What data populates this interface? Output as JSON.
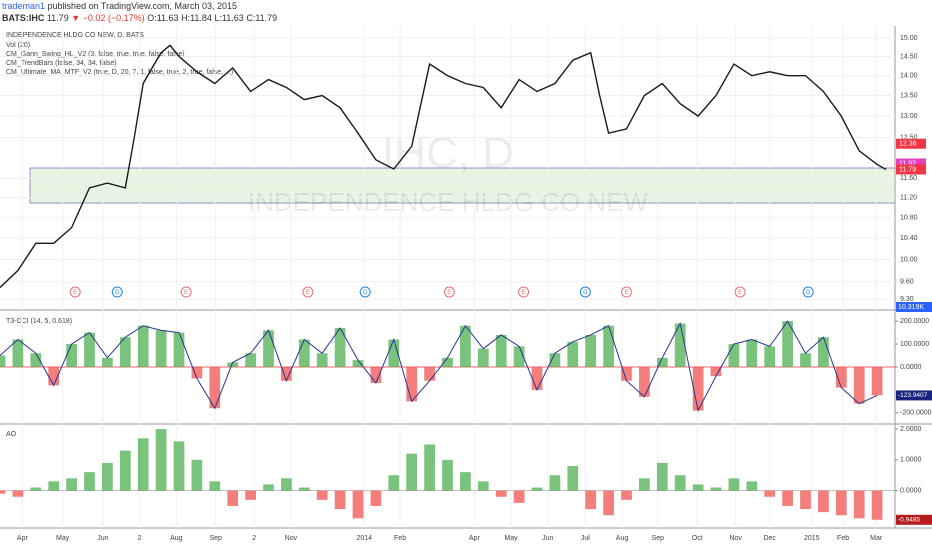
{
  "header": {
    "author": "trademan1",
    "published": "published on TradingView.com, March 03, 2015",
    "symbol": "BATS:IHC",
    "last": "11.79",
    "change": "▼ −0.02 (−0.17%)",
    "ohlc": [
      "O:11.63",
      "H:11.84",
      "L:11.63",
      "C:11.79"
    ]
  },
  "chart_data": [
    {
      "type": "line",
      "title": "INDEPENDENCE HLDG CO NEW, D, BATS",
      "legend": [
        "Vol (20)",
        "CM_Gann_Swing_HL_V2 (3, false, true, true, false, false)",
        "CM_TrendBars (false, 34, 34, false)",
        "CM_Ultimate_MA_MTF_V2 (true, D, 20, 7, 1, false, true, 2, true, false, ...)"
      ],
      "watermark": [
        "IHC, D",
        "INDEPENDENCE HLDG CO NEW"
      ],
      "color": "#1a1a1a",
      "log_scale": true,
      "grid": true,
      "x": [
        0,
        2,
        4,
        6,
        8,
        10,
        12,
        14,
        15,
        16,
        17,
        18,
        19,
        20,
        22,
        24,
        26,
        28,
        30,
        32,
        34,
        36,
        38,
        40,
        42,
        44,
        46,
        48,
        50,
        52,
        54,
        56,
        58,
        60,
        62,
        64,
        66,
        67,
        68,
        70,
        72,
        74,
        76,
        78,
        80,
        82,
        84,
        86,
        88,
        90,
        92,
        94,
        96,
        98,
        99
      ],
      "values": [
        9.5,
        9.8,
        10.3,
        10.3,
        10.6,
        11.4,
        11.5,
        11.4,
        12.5,
        13.8,
        14.2,
        14.6,
        14.8,
        14.5,
        14.1,
        13.8,
        14.2,
        13.6,
        13.9,
        13.7,
        13.4,
        13.5,
        13.2,
        12.6,
        12.0,
        11.8,
        12.3,
        14.3,
        14.0,
        13.8,
        13.7,
        13.2,
        13.9,
        13.6,
        13.8,
        14.4,
        14.6,
        13.5,
        12.6,
        12.7,
        13.5,
        13.8,
        13.3,
        13.0,
        13.5,
        14.3,
        14.0,
        14.1,
        14.0,
        14.0,
        13.6,
        13.0,
        12.2,
        11.9,
        11.79
      ],
      "xlim": [
        0,
        100
      ],
      "xticks": [
        {
          "value": 2.5,
          "label": "Apr"
        },
        {
          "value": 7,
          "label": "May"
        },
        {
          "value": 11.5,
          "label": "Jun"
        },
        {
          "value": 15.6,
          "label": "2"
        },
        {
          "value": 19.7,
          "label": "Aug"
        },
        {
          "value": 24.1,
          "label": "Sep"
        },
        {
          "value": 28.4,
          "label": "2"
        },
        {
          "value": 32.5,
          "label": "Nov"
        },
        {
          "value": 40.7,
          "label": "2014"
        },
        {
          "value": 44.7,
          "label": "Feb"
        },
        {
          "value": 53,
          "label": "Apr"
        },
        {
          "value": 57.1,
          "label": "May"
        },
        {
          "value": 61.2,
          "label": "Jun"
        },
        {
          "value": 65.4,
          "label": "Jul"
        },
        {
          "value": 69.5,
          "label": "Aug"
        },
        {
          "value": 73.5,
          "label": "Sep"
        },
        {
          "value": 77.9,
          "label": "Oct"
        },
        {
          "value": 82.2,
          "label": "Nov"
        },
        {
          "value": 86,
          "label": "Dec"
        },
        {
          "value": 90.7,
          "label": "2015"
        },
        {
          "value": 94.2,
          "label": "Feb"
        },
        {
          "value": 97.9,
          "label": "Mar"
        }
      ],
      "ylim": [
        9.15,
        15.22
      ],
      "yticks": [
        {
          "value": 15,
          "label": "15.00"
        },
        {
          "value": 14.5,
          "label": "14.50"
        },
        {
          "value": 14,
          "label": "14.00"
        },
        {
          "value": 13.5,
          "label": "13.50"
        },
        {
          "value": 13,
          "label": "13.00"
        },
        {
          "value": 12.5,
          "label": "12.50"
        },
        {
          "value": 11.6,
          "label": "11.60"
        },
        {
          "value": 11.2,
          "label": "11.20"
        },
        {
          "value": 10.8,
          "label": "10.80"
        },
        {
          "value": 10.4,
          "label": "10.40"
        },
        {
          "value": 10,
          "label": "10.00"
        },
        {
          "value": 9.6,
          "label": "9.60"
        },
        {
          "value": 9.3,
          "label": "9.30"
        }
      ],
      "price_labels": [
        {
          "value": 12.36,
          "label": "12.36",
          "color": "#f23645"
        },
        {
          "value": 11.92,
          "label": "11.92",
          "color": "#e040c0"
        },
        {
          "value": 11.79,
          "label": "11.79",
          "color": "#f23645"
        }
      ],
      "volume_label": "10.319K",
      "events": [
        {
          "x": 8.4,
          "label": "E"
        },
        {
          "x": 13.1,
          "label": "D"
        },
        {
          "x": 20.8,
          "label": "E"
        },
        {
          "x": 34.4,
          "label": "E"
        },
        {
          "x": 40.8,
          "label": "D"
        },
        {
          "x": 50.2,
          "label": "E"
        },
        {
          "x": 58.5,
          "label": "E"
        },
        {
          "x": 65.4,
          "label": "D"
        },
        {
          "x": 70,
          "label": "E"
        },
        {
          "x": 82.7,
          "label": "E"
        },
        {
          "x": 90.3,
          "label": "D"
        }
      ]
    },
    {
      "type": "bar",
      "title": "T3-CCI (14, 5, 0.618)",
      "colors": [
        "#4caf50",
        "#ef5350"
      ],
      "x": [
        0,
        2,
        4,
        6,
        8,
        10,
        12,
        14,
        16,
        18,
        20,
        22,
        24,
        26,
        28,
        30,
        32,
        34,
        36,
        38,
        40,
        42,
        44,
        46,
        48,
        50,
        52,
        54,
        56,
        58,
        60,
        62,
        64,
        66,
        68,
        70,
        72,
        74,
        76,
        78,
        80,
        82,
        84,
        86,
        88,
        90,
        92,
        94,
        96,
        98
      ],
      "values": [
        50,
        120,
        60,
        -80,
        100,
        150,
        40,
        130,
        180,
        160,
        150,
        -50,
        -180,
        20,
        60,
        160,
        -60,
        120,
        60,
        170,
        30,
        -70,
        120,
        -150,
        -60,
        40,
        180,
        80,
        140,
        90,
        -100,
        60,
        110,
        140,
        180,
        -60,
        -130,
        40,
        190,
        -190,
        -40,
        100,
        120,
        90,
        200,
        60,
        130,
        -90,
        -160,
        -123.9407
      ],
      "last_label": "-123.9407",
      "xlim": [
        0,
        100
      ],
      "ylim": [
        -240,
        240
      ],
      "yticks": [
        {
          "value": 200,
          "label": "200.0000"
        },
        {
          "value": 100,
          "label": "100.0000"
        },
        {
          "value": 0,
          "label": "0.0000"
        },
        {
          "value": -200,
          "label": "-200.0000"
        }
      ]
    },
    {
      "type": "bar",
      "title": "AO",
      "colors": [
        "#4caf50",
        "#ef5350"
      ],
      "x": [
        0,
        2,
        4,
        6,
        8,
        10,
        12,
        14,
        16,
        18,
        20,
        22,
        24,
        26,
        28,
        30,
        32,
        34,
        36,
        38,
        40,
        42,
        44,
        46,
        48,
        50,
        52,
        54,
        56,
        58,
        60,
        62,
        64,
        66,
        68,
        70,
        72,
        74,
        76,
        78,
        80,
        82,
        84,
        86,
        88,
        90,
        92,
        94,
        96,
        98
      ],
      "values": [
        -0.1,
        -0.2,
        0.1,
        0.3,
        0.4,
        0.6,
        0.9,
        1.3,
        1.7,
        2.0,
        1.6,
        1.0,
        0.3,
        -0.5,
        -0.3,
        0.2,
        0.4,
        0.1,
        -0.3,
        -0.6,
        -0.9,
        -0.5,
        0.5,
        1.2,
        1.5,
        1.0,
        0.6,
        0.3,
        -0.2,
        -0.4,
        0.1,
        0.5,
        0.8,
        -0.6,
        -0.8,
        -0.3,
        0.4,
        0.9,
        0.5,
        0.2,
        0.1,
        0.4,
        0.3,
        -0.2,
        -0.5,
        -0.6,
        -0.7,
        -0.8,
        -0.9,
        -0.9485
      ],
      "last_label": "-0.9485",
      "xlim": [
        0,
        100
      ],
      "ylim": [
        -1.15,
        2.1
      ],
      "yticks": [
        {
          "value": 2,
          "label": "2.0000"
        },
        {
          "value": 1,
          "label": "1.0000"
        },
        {
          "value": 0,
          "label": "0.0000"
        }
      ]
    }
  ]
}
